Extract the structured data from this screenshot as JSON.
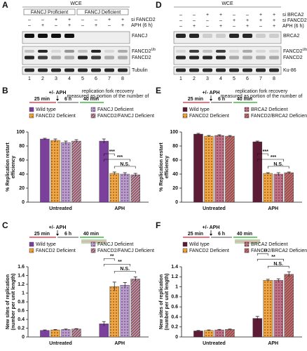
{
  "blots": [
    {
      "letter": "A",
      "header": "WCE",
      "groups": [
        "FANCJ Proficient",
        "FANCJ Deficient"
      ],
      "treatments": [
        {
          "label": "si FANCD2",
          "signs": [
            "–",
            "–",
            "+",
            "+",
            "–",
            "–",
            "+",
            "+"
          ]
        },
        {
          "label": "APH (6 h)",
          "signs": [
            "–",
            "+",
            "–",
            "+",
            "–",
            "+",
            "–",
            "+"
          ]
        }
      ],
      "bands": [
        {
          "name": "FANCJ"
        },
        {
          "name": "FANCD2",
          "sup": "Ub"
        },
        {
          "name": "FANCD2"
        },
        {
          "name": "Tubulin"
        }
      ],
      "lanes": [
        1,
        2,
        3,
        4,
        5,
        6,
        7,
        8
      ]
    },
    {
      "letter": "D",
      "header": "WCE",
      "groups": [],
      "treatments": [
        {
          "label": "si BRCA2",
          "signs": [
            "–",
            "–",
            "+",
            "+",
            "–",
            "–",
            "+",
            "+"
          ]
        },
        {
          "label": "si FANCD2",
          "signs": [
            "–",
            "–",
            "–",
            "–",
            "+",
            "+",
            "+",
            "+"
          ]
        },
        {
          "label": "APH (6 h)",
          "signs": [
            "–",
            "+",
            "–",
            "+",
            "–",
            "+",
            "–",
            "+"
          ]
        }
      ],
      "bands": [
        {
          "name": "BRCA2"
        },
        {
          "name": "FANCD2",
          "sup": "Ub"
        },
        {
          "name": "FANCD2"
        },
        {
          "name": "Ku-86"
        }
      ],
      "lanes": [
        1,
        2,
        3,
        4,
        5,
        6,
        7,
        8
      ]
    }
  ],
  "chart_data": [
    {
      "type": "bar",
      "letter": "B",
      "protocol": {
        "treatment": "+/- APH",
        "pulse1": "25 min",
        "gap": "6 h",
        "pulse2": "40 min",
        "note": [
          "replication fork recovery",
          "measured as portion of the number of"
        ]
      },
      "ylabel": [
        "% Replication restart",
        "efficiency"
      ],
      "categories": [
        "Untreated",
        "APH"
      ],
      "series": [
        {
          "name": "Wild type",
          "color": "#7b3f9c",
          "pattern": null,
          "values": [
            90,
            87
          ],
          "errors": [
            1,
            3
          ]
        },
        {
          "name": "FANCD2 Deficient",
          "color": "#f2a541",
          "pattern": "dots",
          "values": [
            88,
            41
          ],
          "errors": [
            2,
            2
          ]
        },
        {
          "name": "FANCJ Deficient",
          "color": "#b99bd2",
          "pattern": "dots",
          "values": [
            85,
            40
          ],
          "errors": [
            2,
            2
          ]
        },
        {
          "name": "FANCD2/FANCJ Deficient",
          "color": "#b99bd2",
          "pattern": "stripes",
          "values": [
            87,
            39
          ],
          "errors": [
            2,
            2
          ]
        }
      ],
      "ylim": [
        0,
        100
      ],
      "yticks": [
        0,
        20,
        40,
        60,
        80,
        100
      ],
      "annotations": [
        "***",
        "***",
        "N.S."
      ]
    },
    {
      "type": "bar",
      "letter": "C",
      "protocol": {
        "treatment": "+/- APH",
        "pulse1": "25 min",
        "gap": "6 h",
        "pulse2": "40 min"
      },
      "ylabel": [
        "New sites of replication",
        "(number per unit length)"
      ],
      "categories": [
        "Untreated",
        "APH"
      ],
      "series": [
        {
          "name": "Wild type",
          "color": "#7b3f9c",
          "pattern": null,
          "values": [
            0.15,
            0.3
          ],
          "errors": [
            0.01,
            0.05
          ]
        },
        {
          "name": "FANCD2 Deficient",
          "color": "#f2a541",
          "pattern": "dots",
          "values": [
            0.16,
            1.15
          ],
          "errors": [
            0.01,
            0.1
          ]
        },
        {
          "name": "FANCJ Deficient",
          "color": "#b99bd2",
          "pattern": "dots",
          "values": [
            0.17,
            1.18
          ],
          "errors": [
            0.01,
            0.06
          ]
        },
        {
          "name": "FANCD2/FANCJ Deficient",
          "color": "#b99bd2",
          "pattern": "stripes",
          "values": [
            0.18,
            1.32
          ],
          "errors": [
            0.01,
            0.05
          ]
        }
      ],
      "ylim": [
        0,
        1.6
      ],
      "yticks": [
        0,
        0.2,
        0.4,
        0.6,
        0.8,
        1,
        1.2,
        1.4,
        1.6
      ],
      "annotations": [
        "**",
        "**",
        "N.S."
      ]
    },
    {
      "type": "bar",
      "letter": "E",
      "protocol": {
        "treatment": "+/- APH",
        "pulse1": "25 min",
        "gap": "6 h",
        "pulse2": "40 min",
        "note": [
          "replication fork recovery",
          "measured as portion of the number of"
        ]
      },
      "ylabel": [
        "% Replication restart",
        "efficiency"
      ],
      "categories": [
        "Untreated",
        "APH"
      ],
      "series": [
        {
          "name": "Wild type",
          "color": "#5e1b36",
          "pattern": null,
          "values": [
            97,
            86
          ],
          "errors": [
            1,
            1
          ]
        },
        {
          "name": "FANCD2 Deficient",
          "color": "#f2a541",
          "pattern": "dots",
          "values": [
            94,
            41
          ],
          "errors": [
            1,
            1
          ]
        },
        {
          "name": "BRCA2 Deficient",
          "color": "#c27089",
          "pattern": "dots",
          "values": [
            95,
            40
          ],
          "errors": [
            1,
            2
          ]
        },
        {
          "name": "FANCD2/BRCA2 Deficient",
          "color": "#c27089",
          "pattern": "stripes",
          "values": [
            94,
            42
          ],
          "errors": [
            1,
            1
          ]
        }
      ],
      "ylim": [
        0,
        100
      ],
      "yticks": [
        0,
        20,
        40,
        60,
        80,
        100
      ],
      "annotations": [
        "***",
        "***",
        "N.S."
      ]
    },
    {
      "type": "bar",
      "letter": "F",
      "protocol": {
        "treatment": "+/- APH",
        "pulse1": "25 min",
        "gap": "6 h",
        "pulse2": "40 min"
      },
      "ylabel": [
        "New sites of replication",
        "(number per unit length)"
      ],
      "categories": [
        "Untreated",
        "APH"
      ],
      "series": [
        {
          "name": "Wild type",
          "color": "#5e1b36",
          "pattern": null,
          "values": [
            0.12,
            0.37
          ],
          "errors": [
            0.01,
            0.04
          ]
        },
        {
          "name": "FANCD2 Deficient",
          "color": "#f2a541",
          "pattern": "dots",
          "values": [
            0.13,
            1.13
          ],
          "errors": [
            0.01,
            0.02
          ]
        },
        {
          "name": "BRCA2 Deficient",
          "color": "#c27089",
          "pattern": "dots",
          "values": [
            0.14,
            1.13
          ],
          "errors": [
            0.01,
            0.03
          ]
        },
        {
          "name": "FANCD2/BRCA2 Deficient",
          "color": "#c27089",
          "pattern": "stripes",
          "values": [
            0.15,
            1.25
          ],
          "errors": [
            0.01,
            0.05
          ]
        }
      ],
      "ylim": [
        0,
        1.4
      ],
      "yticks": [
        0,
        0.2,
        0.4,
        0.6,
        0.8,
        1,
        1.2,
        1.4
      ],
      "annotations": [
        "**",
        "**",
        "N.S."
      ]
    }
  ]
}
